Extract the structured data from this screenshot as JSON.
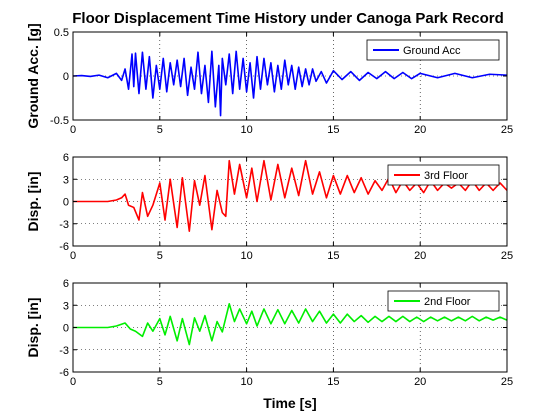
{
  "figure": {
    "title": "Floor Displacement Time History under Canoga Park Record",
    "xlabel": "Time [s]"
  },
  "chart_data": [
    {
      "type": "line",
      "ylabel": "Ground Acc. [g]",
      "xlim": [
        0,
        25
      ],
      "ylim": [
        -0.5,
        0.5
      ],
      "xticks": [
        0,
        5,
        10,
        15,
        20,
        25
      ],
      "yticks": [
        -0.5,
        0,
        0.5
      ],
      "grid": "dotted",
      "legend": "top-right",
      "series": [
        {
          "name": "Ground Acc",
          "color": "#0000ff",
          "x": [
            0,
            0.5,
            1,
            1.5,
            2,
            2.5,
            2.8,
            3.0,
            3.2,
            3.4,
            3.5,
            3.6,
            3.8,
            4.0,
            4.2,
            4.4,
            4.6,
            4.8,
            5.0,
            5.2,
            5.4,
            5.6,
            5.8,
            6.0,
            6.2,
            6.4,
            6.6,
            6.8,
            7.0,
            7.2,
            7.4,
            7.6,
            7.8,
            8.0,
            8.2,
            8.4,
            8.5,
            8.6,
            8.8,
            9.0,
            9.2,
            9.4,
            9.6,
            9.8,
            10.0,
            10.2,
            10.4,
            10.6,
            10.8,
            11.0,
            11.2,
            11.4,
            11.6,
            11.8,
            12.0,
            12.2,
            12.4,
            12.6,
            12.8,
            13.0,
            13.2,
            13.4,
            13.6,
            13.8,
            14.0,
            14.3,
            14.6,
            15.0,
            15.5,
            16.0,
            16.5,
            17.0,
            17.5,
            18.0,
            18.5,
            19.0,
            19.5,
            20.0,
            21.0,
            22.0,
            23.0,
            24.0,
            25.0
          ],
          "y": [
            0,
            0.005,
            -0.005,
            0.01,
            -0.02,
            0.03,
            -0.05,
            0.08,
            -0.15,
            0.25,
            -0.12,
            0.26,
            -0.2,
            0.27,
            -0.15,
            0.22,
            -0.25,
            0.12,
            -0.15,
            0.2,
            -0.18,
            0.15,
            -0.1,
            0.18,
            -0.12,
            0.2,
            -0.22,
            0.1,
            -0.15,
            0.27,
            -0.2,
            0.12,
            -0.3,
            0.28,
            -0.35,
            0.12,
            -0.45,
            0.2,
            -0.1,
            0.25,
            -0.2,
            0.28,
            -0.15,
            0.2,
            -0.18,
            0.15,
            -0.25,
            0.22,
            -0.15,
            0.2,
            -0.1,
            0.15,
            -0.18,
            0.12,
            -0.15,
            0.18,
            -0.1,
            0.12,
            -0.15,
            0.1,
            -0.12,
            0.08,
            -0.1,
            0.08,
            -0.06,
            0.05,
            -0.08,
            0.06,
            -0.04,
            0.05,
            -0.05,
            0.04,
            -0.03,
            0.05,
            -0.03,
            0.04,
            -0.03,
            0.03,
            -0.02,
            0.03,
            -0.02,
            0.02,
            0.01
          ]
        }
      ]
    },
    {
      "type": "line",
      "ylabel": "Disp. [in]",
      "xlim": [
        0,
        25
      ],
      "ylim": [
        -6,
        6
      ],
      "xticks": [
        0,
        5,
        10,
        15,
        20,
        25
      ],
      "yticks": [
        -6,
        -3,
        0,
        3,
        6
      ],
      "grid": "dotted",
      "legend": "top-right",
      "series": [
        {
          "name": "3rd Floor",
          "color": "#ff0000",
          "x": [
            0,
            1,
            2,
            2.5,
            2.8,
            3.0,
            3.2,
            3.5,
            3.8,
            4.0,
            4.3,
            4.6,
            5.0,
            5.3,
            5.6,
            6.0,
            6.3,
            6.7,
            7.0,
            7.3,
            7.6,
            8.0,
            8.3,
            8.6,
            8.8,
            9.0,
            9.3,
            9.6,
            10.0,
            10.3,
            10.6,
            11.0,
            11.4,
            11.8,
            12.2,
            12.6,
            13.0,
            13.4,
            13.8,
            14.2,
            14.6,
            15.0,
            15.4,
            15.8,
            16.2,
            16.6,
            17.0,
            17.4,
            17.8,
            18.2,
            18.6,
            19.0,
            19.4,
            19.8,
            20.2,
            20.6,
            21.0,
            21.4,
            21.8,
            22.2,
            22.6,
            23.0,
            23.4,
            23.8,
            24.2,
            24.6,
            25.0
          ],
          "y": [
            0,
            0,
            0,
            0.2,
            0.5,
            1.0,
            -0.5,
            -0.8,
            -2.5,
            1.2,
            -2,
            -0.5,
            2.5,
            -2.5,
            3.0,
            -3.5,
            3.2,
            -4.0,
            2.8,
            -0.5,
            3.5,
            -3.8,
            1.5,
            -1.5,
            -2.0,
            5.5,
            1.0,
            5.0,
            0.5,
            4.5,
            0,
            5.5,
            0.2,
            5.0,
            0.5,
            4.5,
            0.8,
            5.5,
            1.0,
            4.0,
            0.5,
            3.5,
            1.0,
            3.5,
            1.2,
            3.2,
            1.0,
            2.8,
            1.5,
            3.2,
            1.2,
            2.8,
            1.5,
            2.5,
            1.2,
            2.8,
            1.5,
            2.5,
            1.8,
            2.5,
            1.5,
            2.8,
            1.5,
            2.5,
            1.5,
            2.5,
            1.5
          ]
        }
      ]
    },
    {
      "type": "line",
      "ylabel": "Disp. [in]",
      "xlim": [
        0,
        25
      ],
      "ylim": [
        -6,
        6
      ],
      "xticks": [
        0,
        5,
        10,
        15,
        20,
        25
      ],
      "yticks": [
        -6,
        -3,
        0,
        3,
        6
      ],
      "grid": "dotted",
      "legend": "top-right",
      "series": [
        {
          "name": "2nd Floor",
          "color": "#00ee00",
          "x": [
            0,
            1,
            2,
            2.5,
            3.0,
            3.3,
            3.6,
            4.0,
            4.3,
            4.6,
            5.0,
            5.3,
            5.6,
            6.0,
            6.3,
            6.7,
            7.0,
            7.3,
            7.6,
            8.0,
            8.3,
            8.6,
            9.0,
            9.3,
            9.6,
            10.0,
            10.3,
            10.6,
            11.0,
            11.4,
            11.8,
            12.2,
            12.6,
            13.0,
            13.4,
            13.8,
            14.2,
            14.6,
            15.0,
            15.4,
            15.8,
            16.2,
            16.6,
            17.0,
            17.4,
            17.8,
            18.2,
            18.6,
            19.0,
            19.4,
            19.8,
            20.2,
            20.6,
            21.0,
            21.4,
            21.8,
            22.2,
            22.6,
            23.0,
            23.4,
            23.8,
            24.2,
            24.6,
            25.0
          ],
          "y": [
            0,
            0,
            0,
            0.2,
            0.6,
            -0.2,
            -0.5,
            -1.2,
            0.6,
            -0.5,
            1.2,
            -1.0,
            1.5,
            -1.8,
            1.2,
            -2.3,
            1.3,
            -0.5,
            1.6,
            -1.8,
            0.8,
            -0.6,
            3.2,
            0.8,
            2.5,
            0.5,
            2.2,
            0.2,
            2.5,
            0.5,
            2.4,
            0.5,
            2.3,
            0.6,
            2.5,
            0.8,
            2.2,
            0.6,
            1.8,
            0.6,
            1.8,
            0.8,
            1.6,
            0.7,
            1.5,
            0.8,
            1.5,
            0.8,
            1.5,
            0.8,
            1.4,
            0.8,
            1.4,
            0.9,
            1.4,
            0.9,
            1.4,
            0.9,
            1.5,
            0.9,
            1.4,
            1.0,
            1.4,
            1.0
          ]
        }
      ]
    }
  ]
}
